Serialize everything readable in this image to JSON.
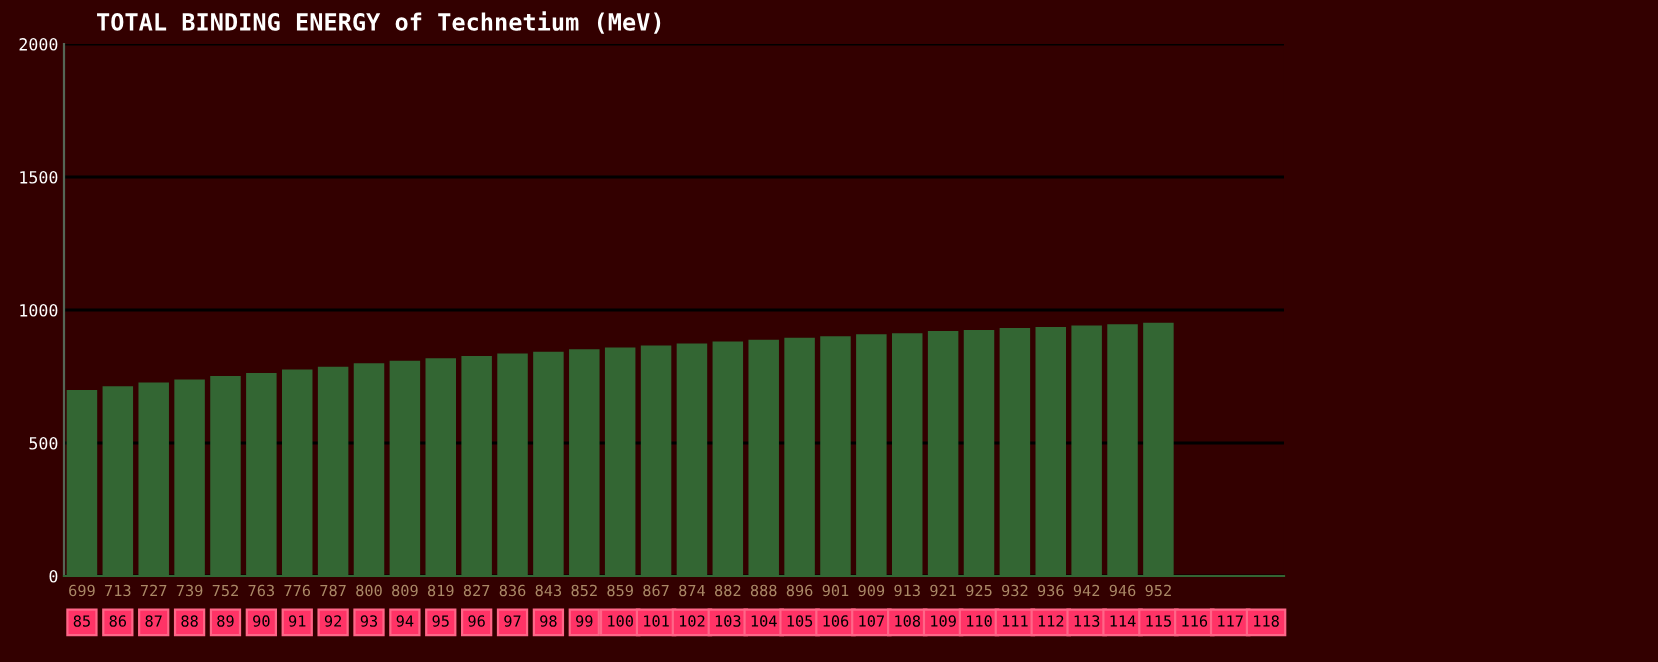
{
  "chart_data": {
    "type": "bar",
    "title": "TOTAL BINDING ENERGY of Technetium (MeV)",
    "categories": [
      "85",
      "86",
      "87",
      "88",
      "89",
      "90",
      "91",
      "92",
      "93",
      "94",
      "95",
      "96",
      "97",
      "98",
      "99",
      "100",
      "101",
      "102",
      "103",
      "104",
      "105",
      "106",
      "107",
      "108",
      "109",
      "110",
      "111",
      "112",
      "113",
      "114",
      "115",
      "116",
      "117",
      "118"
    ],
    "values": [
      699,
      713,
      727,
      739,
      752,
      763,
      776,
      787,
      800,
      809,
      819,
      827,
      836,
      843,
      852,
      859,
      867,
      874,
      882,
      888,
      896,
      901,
      909,
      913,
      921,
      925,
      932,
      936,
      942,
      946,
      952,
      null,
      null,
      null
    ],
    "color": "#336633",
    "data_labels": true,
    "ylim": [
      0,
      2000
    ],
    "yticks": [
      0,
      500,
      1000,
      1500,
      2000
    ],
    "grid": "y",
    "legend": false
  }
}
